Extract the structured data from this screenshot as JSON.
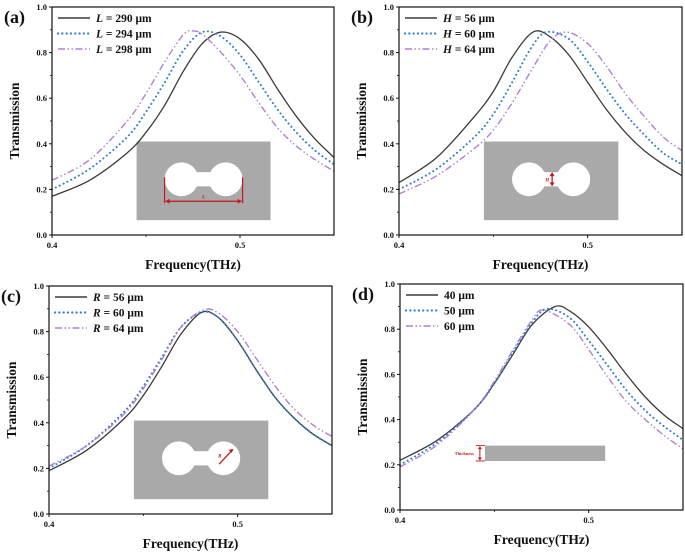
{
  "colors": {
    "solid": "#3a3a3a",
    "dotted": "#2f7fd9",
    "dashdot": "#b27fd8",
    "inset_gray": "#a9a9a9",
    "annotation_red": "#c8161d"
  },
  "chart_data": [
    {
      "panel_label": "(a)",
      "type": "line",
      "xlabel": "Frequency(THz)",
      "ylabel": "Transmission",
      "xlim": [
        0.4,
        0.55
      ],
      "ylim": [
        0.0,
        1.0
      ],
      "xticks": [
        "0.4",
        "0.5"
      ],
      "yticks": [
        "0.0",
        "0.2",
        "0.4",
        "0.6",
        "0.8",
        "1.0"
      ],
      "grid": false,
      "legend": "top-left",
      "inset": {
        "kind": "dumbbell",
        "label": "L",
        "annotates": "length"
      },
      "series": [
        {
          "name": "L = 290 μm",
          "style": "solid",
          "points": [
            [
              0.4,
              0.17
            ],
            [
              0.42,
              0.24
            ],
            [
              0.44,
              0.36
            ],
            [
              0.45,
              0.45
            ],
            [
              0.46,
              0.57
            ],
            [
              0.47,
              0.72
            ],
            [
              0.48,
              0.84
            ],
            [
              0.49,
              0.89
            ],
            [
              0.5,
              0.86
            ],
            [
              0.51,
              0.77
            ],
            [
              0.52,
              0.64
            ],
            [
              0.53,
              0.52
            ],
            [
              0.54,
              0.42
            ],
            [
              0.55,
              0.34
            ]
          ]
        },
        {
          "name": "L = 294 μm",
          "style": "dotted",
          "points": [
            [
              0.4,
              0.2
            ],
            [
              0.42,
              0.29
            ],
            [
              0.44,
              0.43
            ],
            [
              0.45,
              0.54
            ],
            [
              0.46,
              0.67
            ],
            [
              0.47,
              0.81
            ],
            [
              0.48,
              0.89
            ],
            [
              0.49,
              0.87
            ],
            [
              0.5,
              0.79
            ],
            [
              0.51,
              0.67
            ],
            [
              0.52,
              0.55
            ],
            [
              0.53,
              0.45
            ],
            [
              0.54,
              0.37
            ],
            [
              0.55,
              0.31
            ]
          ]
        },
        {
          "name": "L = 298 μm",
          "style": "dashdot",
          "points": [
            [
              0.4,
              0.24
            ],
            [
              0.42,
              0.33
            ],
            [
              0.44,
              0.5
            ],
            [
              0.45,
              0.62
            ],
            [
              0.46,
              0.76
            ],
            [
              0.47,
              0.88
            ],
            [
              0.475,
              0.895
            ],
            [
              0.48,
              0.88
            ],
            [
              0.49,
              0.8
            ],
            [
              0.5,
              0.7
            ],
            [
              0.51,
              0.58
            ],
            [
              0.52,
              0.47
            ],
            [
              0.53,
              0.39
            ],
            [
              0.54,
              0.33
            ],
            [
              0.55,
              0.28
            ]
          ]
        }
      ]
    },
    {
      "panel_label": "(b)",
      "type": "line",
      "xlabel": "Frequency(THz)",
      "ylabel": "Transmission",
      "xlim": [
        0.4,
        0.55
      ],
      "ylim": [
        0.0,
        1.0
      ],
      "xticks": [
        "0.4",
        "0.5"
      ],
      "yticks": [
        "0.0",
        "0.2",
        "0.4",
        "0.6",
        "0.8",
        "1.0"
      ],
      "grid": false,
      "legend": "top-left",
      "inset": {
        "kind": "dumbbell",
        "label": "H",
        "annotates": "neck-height"
      },
      "series": [
        {
          "name": "H = 56 μm",
          "style": "solid",
          "points": [
            [
              0.4,
              0.23
            ],
            [
              0.42,
              0.34
            ],
            [
              0.44,
              0.52
            ],
            [
              0.45,
              0.63
            ],
            [
              0.46,
              0.78
            ],
            [
              0.471,
              0.89
            ],
            [
              0.48,
              0.87
            ],
            [
              0.49,
              0.79
            ],
            [
              0.5,
              0.67
            ],
            [
              0.51,
              0.55
            ],
            [
              0.52,
              0.45
            ],
            [
              0.53,
              0.37
            ],
            [
              0.54,
              0.31
            ],
            [
              0.55,
              0.26
            ]
          ]
        },
        {
          "name": "H = 60 μm",
          "style": "dotted",
          "points": [
            [
              0.4,
              0.2
            ],
            [
              0.42,
              0.29
            ],
            [
              0.44,
              0.43
            ],
            [
              0.45,
              0.53
            ],
            [
              0.46,
              0.67
            ],
            [
              0.47,
              0.82
            ],
            [
              0.478,
              0.89
            ],
            [
              0.49,
              0.86
            ],
            [
              0.5,
              0.76
            ],
            [
              0.51,
              0.64
            ],
            [
              0.52,
              0.53
            ],
            [
              0.53,
              0.44
            ],
            [
              0.54,
              0.36
            ],
            [
              0.55,
              0.31
            ]
          ]
        },
        {
          "name": "H = 64 μm",
          "style": "dashdot",
          "points": [
            [
              0.4,
              0.18
            ],
            [
              0.42,
              0.26
            ],
            [
              0.44,
              0.38
            ],
            [
              0.45,
              0.46
            ],
            [
              0.46,
              0.58
            ],
            [
              0.47,
              0.72
            ],
            [
              0.48,
              0.85
            ],
            [
              0.489,
              0.89
            ],
            [
              0.5,
              0.84
            ],
            [
              0.51,
              0.74
            ],
            [
              0.52,
              0.62
            ],
            [
              0.53,
              0.52
            ],
            [
              0.54,
              0.43
            ],
            [
              0.55,
              0.37
            ]
          ]
        }
      ]
    },
    {
      "panel_label": "(c)",
      "type": "line",
      "xlabel": "Frequency(THz)",
      "ylabel": "Transmission",
      "xlim": [
        0.4,
        0.55
      ],
      "ylim": [
        0.0,
        1.0
      ],
      "xticks": [
        "0.4",
        "0.5"
      ],
      "yticks": [
        "0.0",
        "0.2",
        "0.4",
        "0.6",
        "0.8",
        "1.0"
      ],
      "grid": false,
      "legend": "top-left",
      "inset": {
        "kind": "dumbbell",
        "label": "R",
        "annotates": "radius"
      },
      "series": [
        {
          "name": "R = 56 μm",
          "style": "solid",
          "points": [
            [
              0.4,
              0.19
            ],
            [
              0.42,
              0.28
            ],
            [
              0.44,
              0.42
            ],
            [
              0.45,
              0.52
            ],
            [
              0.46,
              0.65
            ],
            [
              0.47,
              0.79
            ],
            [
              0.481,
              0.885
            ],
            [
              0.49,
              0.86
            ],
            [
              0.5,
              0.76
            ],
            [
              0.51,
              0.63
            ],
            [
              0.52,
              0.51
            ],
            [
              0.53,
              0.42
            ],
            [
              0.54,
              0.35
            ],
            [
              0.55,
              0.3
            ]
          ]
        },
        {
          "name": "R = 60 μm",
          "style": "dotted",
          "points": [
            [
              0.4,
              0.2
            ],
            [
              0.42,
              0.3
            ],
            [
              0.44,
              0.45
            ],
            [
              0.45,
              0.56
            ],
            [
              0.46,
              0.69
            ],
            [
              0.47,
              0.82
            ],
            [
              0.481,
              0.885
            ],
            [
              0.49,
              0.86
            ],
            [
              0.5,
              0.76
            ],
            [
              0.51,
              0.63
            ],
            [
              0.52,
              0.51
            ],
            [
              0.53,
              0.42
            ],
            [
              0.54,
              0.35
            ],
            [
              0.55,
              0.3
            ]
          ]
        },
        {
          "name": "R = 64 μm",
          "style": "dashdot",
          "points": [
            [
              0.4,
              0.21
            ],
            [
              0.42,
              0.3
            ],
            [
              0.44,
              0.44
            ],
            [
              0.45,
              0.55
            ],
            [
              0.46,
              0.68
            ],
            [
              0.47,
              0.82
            ],
            [
              0.482,
              0.895
            ],
            [
              0.49,
              0.88
            ],
            [
              0.5,
              0.8
            ],
            [
              0.51,
              0.68
            ],
            [
              0.52,
              0.56
            ],
            [
              0.53,
              0.46
            ],
            [
              0.54,
              0.39
            ],
            [
              0.55,
              0.34
            ]
          ]
        }
      ]
    },
    {
      "panel_label": "(d)",
      "type": "line",
      "xlabel": "Frequency(THz)",
      "ylabel": "Transmission",
      "xlim": [
        0.4,
        0.55
      ],
      "ylim": [
        0.0,
        1.0
      ],
      "xticks": [
        "0.4",
        "0.5"
      ],
      "yticks": [
        "0.0",
        "0.2",
        "0.4",
        "0.6",
        "0.8",
        "1.0"
      ],
      "grid": false,
      "legend": "top-left",
      "inset": {
        "kind": "slab",
        "label": "Thickness",
        "annotates": "thickness"
      },
      "series": [
        {
          "name": "40 μm",
          "style": "solid",
          "points": [
            [
              0.4,
              0.22
            ],
            [
              0.42,
              0.31
            ],
            [
              0.44,
              0.45
            ],
            [
              0.45,
              0.56
            ],
            [
              0.46,
              0.69
            ],
            [
              0.47,
              0.82
            ],
            [
              0.482,
              0.9
            ],
            [
              0.49,
              0.88
            ],
            [
              0.5,
              0.81
            ],
            [
              0.51,
              0.71
            ],
            [
              0.52,
              0.6
            ],
            [
              0.53,
              0.5
            ],
            [
              0.54,
              0.42
            ],
            [
              0.55,
              0.36
            ]
          ]
        },
        {
          "name": "50 μm",
          "style": "dotted",
          "points": [
            [
              0.4,
              0.2
            ],
            [
              0.42,
              0.3
            ],
            [
              0.44,
              0.45
            ],
            [
              0.45,
              0.56
            ],
            [
              0.46,
              0.7
            ],
            [
              0.47,
              0.83
            ],
            [
              0.478,
              0.89
            ],
            [
              0.49,
              0.85
            ],
            [
              0.5,
              0.75
            ],
            [
              0.51,
              0.64
            ],
            [
              0.52,
              0.53
            ],
            [
              0.53,
              0.44
            ],
            [
              0.54,
              0.37
            ],
            [
              0.55,
              0.31
            ]
          ]
        },
        {
          "name": "60 μm",
          "style": "dashdot",
          "points": [
            [
              0.4,
              0.19
            ],
            [
              0.42,
              0.29
            ],
            [
              0.44,
              0.45
            ],
            [
              0.45,
              0.57
            ],
            [
              0.46,
              0.71
            ],
            [
              0.47,
              0.84
            ],
            [
              0.476,
              0.885
            ],
            [
              0.49,
              0.82
            ],
            [
              0.5,
              0.71
            ],
            [
              0.51,
              0.59
            ],
            [
              0.52,
              0.48
            ],
            [
              0.53,
              0.4
            ],
            [
              0.54,
              0.33
            ],
            [
              0.55,
              0.27
            ]
          ]
        }
      ]
    }
  ]
}
